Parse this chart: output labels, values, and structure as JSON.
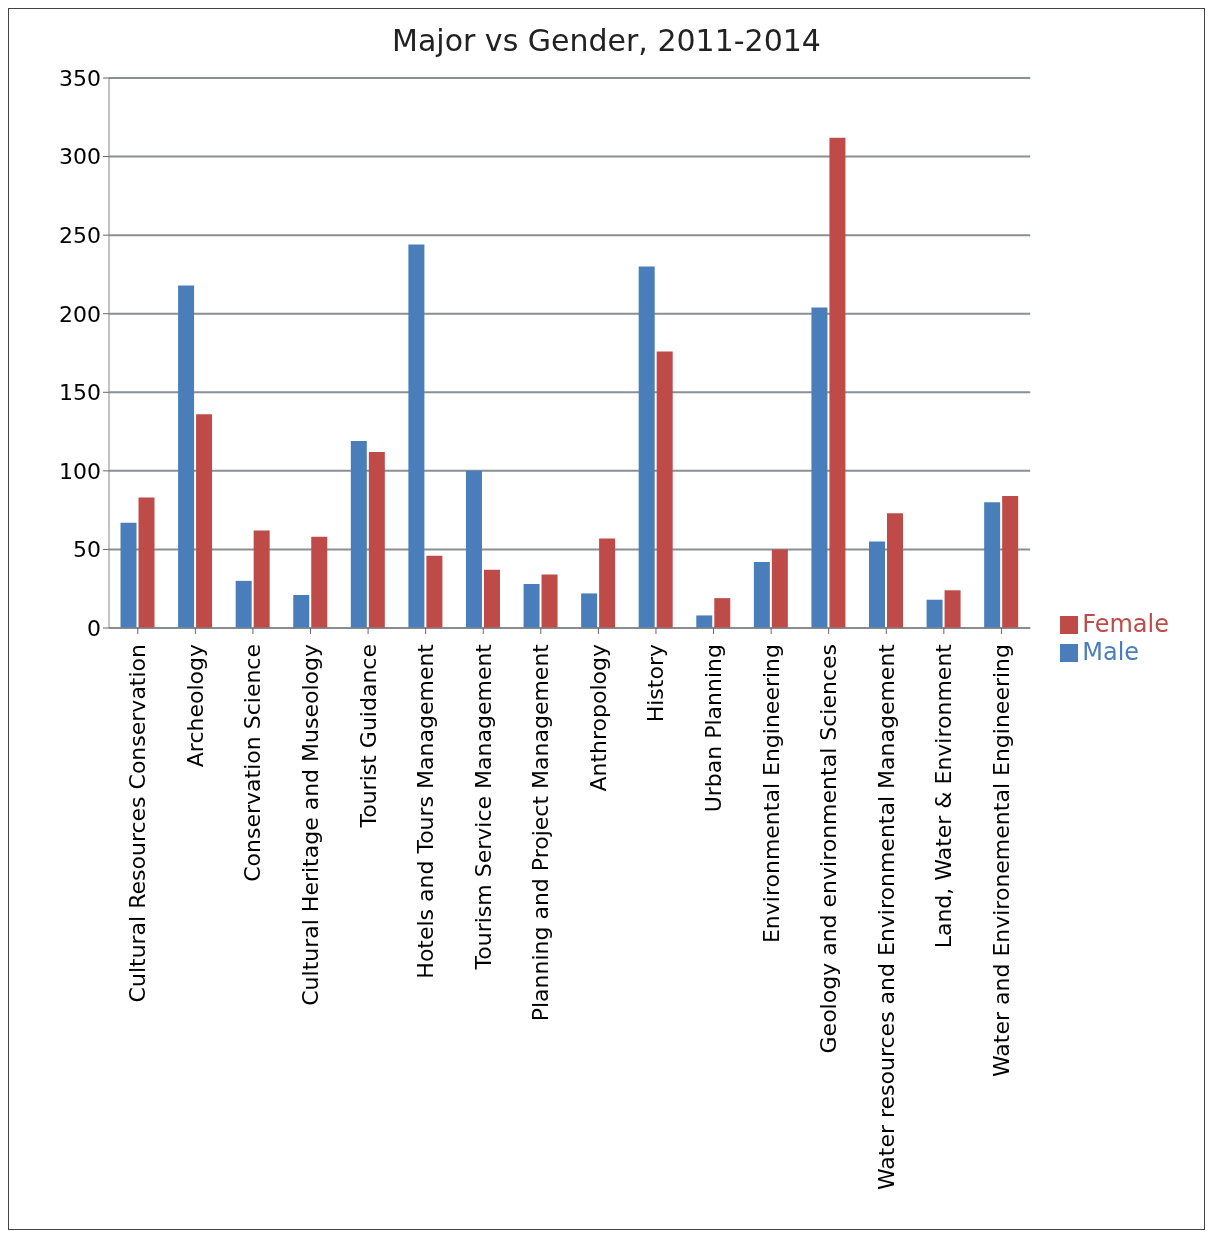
{
  "chart_data": {
    "type": "bar",
    "title": "Major vs Gender, 2011-2014",
    "categories": [
      "Cultural Resources Conservation",
      "Archeology",
      "Conservation Science",
      "Cultural Heritage and Museology",
      "Tourist Guidance",
      "Hotels and Tours Management",
      "Tourism Service Management",
      "Planning and Project Management",
      "Anthropology",
      "History",
      "Urban Planning",
      "Environmental Engineering",
      "Geology and environmental Sciences",
      "Water resources and Environmental Management",
      "Land, Water & Environment",
      "Water and Environemental Engineering"
    ],
    "series": [
      {
        "name": "Male",
        "color": "#4a7ebb",
        "values": [
          67,
          218,
          30,
          21,
          119,
          244,
          100,
          28,
          22,
          230,
          8,
          42,
          204,
          55,
          18,
          80
        ]
      },
      {
        "name": "Female",
        "color": "#be4b48",
        "values": [
          83,
          136,
          62,
          58,
          112,
          46,
          37,
          34,
          57,
          176,
          19,
          50,
          312,
          73,
          24,
          84
        ]
      }
    ],
    "ylim": [
      0,
      350
    ],
    "yticks": [
      0,
      50,
      100,
      150,
      200,
      250,
      300,
      350
    ],
    "grid": "y",
    "legend": "right"
  }
}
